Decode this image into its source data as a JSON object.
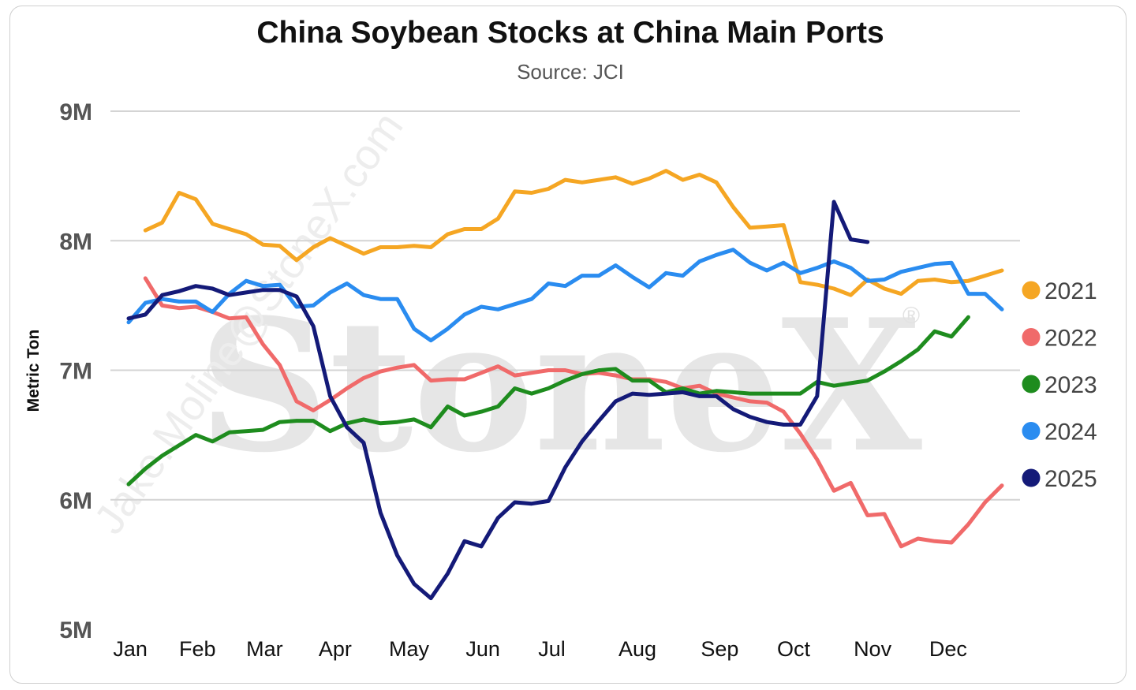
{
  "chart_data": {
    "type": "line",
    "title": "China Soybean Stocks at China Main Ports",
    "subtitle": "Source: JCI",
    "xlabel": "",
    "ylabel": "Metric Ton",
    "ylim": [
      5000000,
      9000000
    ],
    "yticks": [
      {
        "value": 5000000,
        "label": "5M"
      },
      {
        "value": 6000000,
        "label": "6M"
      },
      {
        "value": 7000000,
        "label": "7M"
      },
      {
        "value": 8000000,
        "label": "8M"
      },
      {
        "value": 9000000,
        "label": "9M"
      }
    ],
    "xlim": [
      1,
      53
    ],
    "x_unit": "week",
    "xticks": [
      {
        "week": 1.1,
        "label": "Jan"
      },
      {
        "week": 5.1,
        "label": "Feb"
      },
      {
        "week": 9.1,
        "label": "Mar"
      },
      {
        "week": 13.3,
        "label": "Apr"
      },
      {
        "week": 17.7,
        "label": "May"
      },
      {
        "week": 22.1,
        "label": "Jun"
      },
      {
        "week": 26.2,
        "label": "Jul"
      },
      {
        "week": 31.3,
        "label": "Aug"
      },
      {
        "week": 36.2,
        "label": "Sep"
      },
      {
        "week": 40.6,
        "label": "Oct"
      },
      {
        "week": 45.3,
        "label": "Nov"
      },
      {
        "week": 49.8,
        "label": "Dec"
      }
    ],
    "grid": true,
    "legend_position": "right",
    "series": [
      {
        "name": "2021",
        "color": "#f5a623",
        "start_week": 2,
        "values": [
          8.08,
          8.14,
          8.37,
          8.32,
          8.13,
          8.09,
          8.05,
          7.97,
          7.96,
          7.85,
          7.95,
          8.02,
          7.96,
          7.9,
          7.95,
          7.95,
          7.96,
          7.95,
          8.05,
          8.09,
          8.09,
          8.17,
          8.38,
          8.37,
          8.4,
          8.47,
          8.45,
          8.47,
          8.49,
          8.44,
          8.48,
          8.54,
          8.47,
          8.51,
          8.45,
          8.26,
          8.1,
          8.11,
          8.12,
          7.68,
          7.66,
          7.63,
          7.58,
          7.7,
          7.63,
          7.59,
          7.69,
          7.7,
          7.68,
          7.69,
          7.73,
          7.77
        ]
      },
      {
        "name": "2022",
        "color": "#f06a6a",
        "start_week": 2,
        "values": [
          7.71,
          7.5,
          7.48,
          7.49,
          7.45,
          7.4,
          7.41,
          7.2,
          7.04,
          6.76,
          6.69,
          6.77,
          6.86,
          6.94,
          6.99,
          7.02,
          7.04,
          6.92,
          6.93,
          6.93,
          6.98,
          7.03,
          6.96,
          6.98,
          7.0,
          7.0,
          6.97,
          6.98,
          6.96,
          6.93,
          6.93,
          6.91,
          6.86,
          6.88,
          6.82,
          6.79,
          6.76,
          6.75,
          6.68,
          6.51,
          6.31,
          6.07,
          6.13,
          5.88,
          5.89,
          5.64,
          5.7,
          5.68,
          5.67,
          5.81,
          5.98,
          6.11
        ]
      },
      {
        "name": "2023",
        "color": "#1e8c1e",
        "start_week": 1,
        "values": [
          6.12,
          6.24,
          6.34,
          6.42,
          6.5,
          6.45,
          6.52,
          6.53,
          6.54,
          6.6,
          6.61,
          6.61,
          6.53,
          6.59,
          6.62,
          6.59,
          6.6,
          6.62,
          6.56,
          6.72,
          6.65,
          6.68,
          6.72,
          6.86,
          6.82,
          6.86,
          6.92,
          6.97,
          7.0,
          7.01,
          6.92,
          6.92,
          6.83,
          6.86,
          6.82,
          6.84,
          6.83,
          6.82,
          6.82,
          6.82,
          6.82,
          6.91,
          6.88,
          6.9,
          6.92,
          6.99,
          7.07,
          7.16,
          7.3,
          7.26,
          7.41
        ]
      },
      {
        "name": "2024",
        "color": "#2a8cf0",
        "start_week": 1,
        "values": [
          7.37,
          7.52,
          7.55,
          7.53,
          7.53,
          7.45,
          7.59,
          7.69,
          7.65,
          7.66,
          7.49,
          7.5,
          7.6,
          7.67,
          7.58,
          7.55,
          7.55,
          7.32,
          7.23,
          7.32,
          7.43,
          7.49,
          7.47,
          7.51,
          7.55,
          7.67,
          7.65,
          7.73,
          7.73,
          7.81,
          7.72,
          7.64,
          7.75,
          7.73,
          7.84,
          7.89,
          7.93,
          7.83,
          7.77,
          7.83,
          7.75,
          7.79,
          7.84,
          7.79,
          7.69,
          7.7,
          7.76,
          7.79,
          7.82,
          7.83,
          7.59,
          7.59,
          7.47
        ]
      },
      {
        "name": "2025",
        "color": "#141a78",
        "start_week": 1,
        "values": [
          7.4,
          7.43,
          7.58,
          7.61,
          7.65,
          7.63,
          7.58,
          7.6,
          7.62,
          7.62,
          7.57,
          7.34,
          6.8,
          6.56,
          6.44,
          5.9,
          5.57,
          5.35,
          5.24,
          5.43,
          5.68,
          5.64,
          5.86,
          5.98,
          5.97,
          5.99,
          6.25,
          6.45,
          6.61,
          6.76,
          6.82,
          6.81,
          6.82,
          6.83,
          6.8,
          6.8,
          6.7,
          6.64,
          6.6,
          6.58,
          6.58,
          6.8,
          8.3,
          8.01,
          7.99
        ]
      }
    ]
  },
  "watermark": {
    "brand": "StoneX",
    "registered_mark": "®",
    "credit": "Jake.Moline@StoneX.com"
  }
}
